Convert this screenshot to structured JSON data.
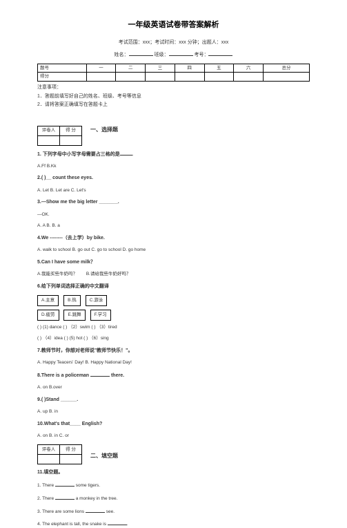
{
  "title": "一年级英语试卷带答案解析",
  "meta": {
    "line1": "考试范围：xxx；考试时间：xxx 分钟；出题人：xxx",
    "line2_prefix": "姓名：",
    "line2_mid": "班级：",
    "line2_end": "考号：",
    "blank": "______________"
  },
  "mainTable": {
    "rowLabels": [
      "题号",
      "得分"
    ],
    "cols": [
      "一",
      "二",
      "三",
      "四",
      "五",
      "六",
      "总分"
    ]
  },
  "notices": {
    "header": "注意事项：",
    "n1": "1．答题前填写好自己的姓名、班级、考号等信息",
    "n2": "2．请将答案正确填写在答题卡上"
  },
  "smallTable": {
    "h1": "评卷人",
    "h2": "得   分"
  },
  "section1": "一、选择题",
  "section2": "二、填空题",
  "questions": {
    "q1": {
      "text": "1. 下列字母中小写字母需要占三格的是",
      "tail": "."
    },
    "q1opts": "A.Ff          B.Kk",
    "q2": "2.(     )__ count these eyes.",
    "q2opts": "A.  Let      B.  Let are    C. Let's",
    "q3": "3.—Show me the big letter _______.",
    "q3r": "—OK.",
    "q3opts": "A.  A     B.  B.   a",
    "q4": "4.We --------（去上学）by bike.",
    "q4opts": "A.  walk to school    B.  go out     C.  go to school     D.  go home",
    "q5": "5.Can I have some milk？",
    "q5line": {
      "a": "A.我能买些牛奶吗？",
      "b": "B.请给我些牛奶好吗？"
    },
    "q6": "6.给下列单词选择正确的中文翻译",
    "boxRow1": [
      "A.主意",
      "B.热",
      "C.游泳"
    ],
    "boxRow2": [
      "D.疲劳",
      "E.跳舞",
      "F.学习"
    ],
    "q6line1": "(      )  (1)  dance   (      ) （2）swim   (      ) （3）tired",
    "q6line2": "(      ) （4）idea   (      )  (5)  hot   (      ) （6）sing",
    "q7": "7.教师节时，你想对老师说\"教师节快乐！\"。",
    "q7opts": "A.    Happy Teacers' Day!    B.    Happy National Day!",
    "q8": {
      "text": "8.There is a policeman ",
      "tail": " there."
    },
    "q8opts": "A.  on            B.over",
    "q9": "9.(    )Stand ______.",
    "q9opts": "A.  up     B.  in",
    "q10": "10.What's that____ English?",
    "q10opts": "A.  on    B.  in C. or",
    "q11": "11.填空题。",
    "q11_1": {
      "a": "1. There ",
      "b": " some tigers."
    },
    "q11_2": {
      "a": "2. There ",
      "b": " a monkey in the tree."
    },
    "q11_3": {
      "a": "3. There are some lions ",
      "b": " see."
    },
    "q11_4": {
      "a": "4. The elephant is tall, the snake is ",
      "b": "."
    }
  }
}
